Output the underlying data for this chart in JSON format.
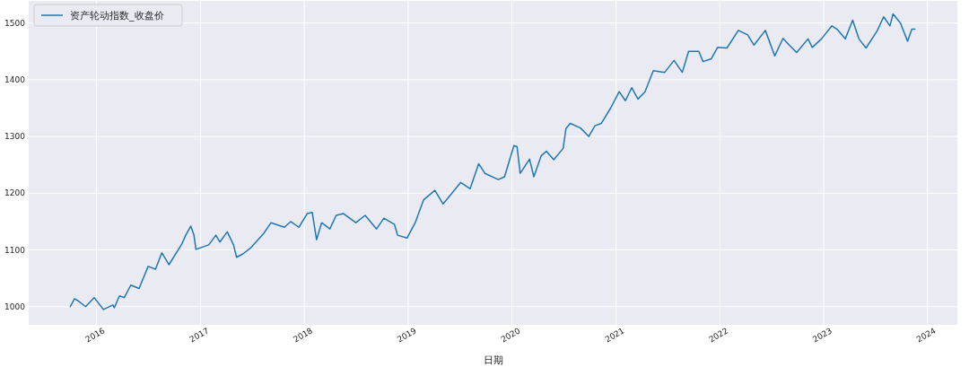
{
  "chart_data": {
    "type": "line",
    "xlabel": "日期",
    "x": [
      "2015-10-01",
      "2015-10-16",
      "2015-10-27",
      "2015-11-24",
      "2015-12-24",
      "2016-01-26",
      "2016-02-28",
      "2016-03-04",
      "2016-03-22",
      "2016-04-08",
      "2016-05-01",
      "2016-05-30",
      "2016-07-01",
      "2016-07-27",
      "2016-08-18",
      "2016-09-12",
      "2016-10-27",
      "2016-11-10",
      "2016-11-28",
      "2016-12-09",
      "2016-12-16",
      "2017-01-30",
      "2017-02-24",
      "2017-03-10",
      "2017-04-05",
      "2017-04-27",
      "2017-05-08",
      "2017-05-30",
      "2017-06-25",
      "2017-08-11",
      "2017-09-06",
      "2017-10-23",
      "2017-11-14",
      "2017-12-13",
      "2018-01-11",
      "2018-01-29",
      "2018-02-13",
      "2018-03-03",
      "2018-04-01",
      "2018-04-23",
      "2018-05-19",
      "2018-07-01",
      "2018-08-03",
      "2018-09-12",
      "2018-10-08",
      "2018-11-14",
      "2018-11-25",
      "2018-12-28",
      "2019-01-26",
      "2019-02-24",
      "2019-04-05",
      "2019-05-04",
      "2019-05-30",
      "2019-07-05",
      "2019-08-07",
      "2019-09-06",
      "2019-09-28",
      "2019-11-14",
      "2019-12-06",
      "2020-01-08",
      "2020-01-19",
      "2020-01-30",
      "2020-03-03",
      "2020-03-18",
      "2020-04-13",
      "2020-05-01",
      "2020-05-27",
      "2020-06-29",
      "2020-07-09",
      "2020-07-24",
      "2020-08-29",
      "2020-09-27",
      "2020-10-19",
      "2020-11-10",
      "2020-12-13",
      "2021-01-12",
      "2021-02-03",
      "2021-02-25",
      "2021-03-19",
      "2021-04-13",
      "2021-05-12",
      "2021-06-21",
      "2021-07-24",
      "2021-08-22",
      "2021-09-13",
      "2021-10-19",
      "2021-11-03",
      "2021-12-02",
      "2021-12-24",
      "2022-01-26",
      "2022-03-07",
      "2022-04-09",
      "2022-05-01",
      "2022-06-10",
      "2022-07-13",
      "2022-08-11",
      "2022-09-02",
      "2022-09-28",
      "2022-11-07",
      "2022-11-22",
      "2022-12-24",
      "2023-01-30",
      "2023-02-17",
      "2023-03-18",
      "2023-04-13",
      "2023-05-05",
      "2023-05-30",
      "2023-07-09",
      "2023-07-31",
      "2023-08-22",
      "2023-09-02",
      "2023-09-28",
      "2023-10-23",
      "2023-11-07",
      "2023-11-18"
    ],
    "series": [
      {
        "name": "资产轮动指数_收盘价",
        "color": "#1f77b4",
        "values": [
          1000,
          1014,
          1011,
          1000,
          1016,
          995,
          1003,
          998,
          1019,
          1016,
          1038,
          1032,
          1071,
          1066,
          1095,
          1074,
          1110,
          1126,
          1142,
          1126,
          1101,
          1109,
          1126,
          1114,
          1132,
          1109,
          1087,
          1093,
          1103,
          1129,
          1148,
          1140,
          1150,
          1140,
          1164,
          1166,
          1118,
          1148,
          1137,
          1161,
          1164,
          1148,
          1161,
          1137,
          1156,
          1145,
          1126,
          1121,
          1148,
          1188,
          1205,
          1181,
          1197,
          1219,
          1208,
          1252,
          1235,
          1224,
          1229,
          1284,
          1282,
          1235,
          1260,
          1229,
          1266,
          1274,
          1259,
          1279,
          1314,
          1323,
          1315,
          1300,
          1319,
          1323,
          1350,
          1379,
          1363,
          1386,
          1366,
          1379,
          1416,
          1413,
          1434,
          1413,
          1450,
          1450,
          1432,
          1437,
          1457,
          1456,
          1487,
          1479,
          1461,
          1487,
          1442,
          1473,
          1461,
          1448,
          1472,
          1457,
          1472,
          1495,
          1489,
          1472,
          1505,
          1472,
          1456,
          1487,
          1511,
          1495,
          1516,
          1500,
          1468,
          1489,
          1489
        ]
      }
    ],
    "xlim": [
      "2015-05-08",
      "2024-04-15"
    ],
    "xticks": [
      {
        "value": "2016",
        "label": "2016"
      },
      {
        "value": "2017",
        "label": "2017"
      },
      {
        "value": "2018",
        "label": "2018"
      },
      {
        "value": "2019",
        "label": "2019"
      },
      {
        "value": "2020",
        "label": "2020"
      },
      {
        "value": "2021",
        "label": "2021"
      },
      {
        "value": "2022",
        "label": "2022"
      },
      {
        "value": "2023",
        "label": "2023"
      },
      {
        "value": "2024",
        "label": "2024"
      }
    ],
    "ylim": [
      968,
      1539
    ],
    "yticks": [
      1000,
      1100,
      1200,
      1300,
      1400,
      1500
    ],
    "grid": true,
    "legend": "top left",
    "line_style": "solid",
    "marker": "none"
  }
}
